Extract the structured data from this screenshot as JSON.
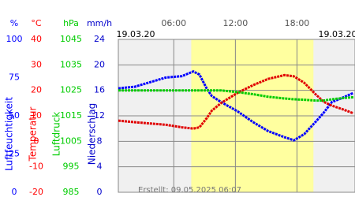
{
  "chart_data": {
    "type": "line",
    "date_left": "19.03.20",
    "date_right": "19.03.20",
    "footer": "Erstellt: 09.05.2025 06:07",
    "xlim": [
      0.6,
      23.65
    ],
    "xticks": [
      {
        "value": 6,
        "label": "06:00"
      },
      {
        "value": 12,
        "label": "12:00"
      },
      {
        "value": 18,
        "label": "18:00"
      }
    ],
    "daylight": [
      7.7,
      19.6
    ],
    "axes": [
      {
        "unit": "%",
        "title": "Luftfeuchtigkeit",
        "color": "#0000ff",
        "lim": [
          0,
          100
        ],
        "ticks": [
          0,
          25,
          50,
          75,
          100
        ]
      },
      {
        "unit": "°C",
        "title": "Temperatur",
        "color": "#ff0000",
        "lim": [
          -20,
          40
        ],
        "ticks": [
          -20,
          -10,
          0,
          10,
          20,
          30,
          40
        ]
      },
      {
        "unit": "hPa",
        "title": "Luftdruck",
        "color": "#00cc00",
        "lim": [
          985,
          1045
        ],
        "ticks": [
          985,
          995,
          1005,
          1015,
          1025,
          1035,
          1045
        ]
      },
      {
        "unit": "mm/h",
        "title": "Niederschlag",
        "color": "#0000cc",
        "lim": [
          0,
          24
        ],
        "ticks": [
          0,
          4,
          8,
          12,
          16,
          20,
          24
        ]
      }
    ],
    "x": [
      0.6,
      2.2,
      3.7,
      5.2,
      6.8,
      7.9,
      8.5,
      9.2,
      9.7,
      10.6,
      12.2,
      13.7,
      15.2,
      16.8,
      17.7,
      18.7,
      19.8,
      20.6,
      21.4,
      22.5,
      23.5
    ],
    "series": [
      {
        "axis": 0,
        "color": "#0000ff",
        "values": [
          68,
          69,
          72,
          75,
          76,
          79,
          77,
          68,
          63,
          59,
          53,
          46,
          40,
          36,
          34,
          38,
          46,
          52,
          59,
          62,
          65
        ]
      },
      {
        "axis": 1,
        "color": "#e00000",
        "values": [
          8.1,
          7.5,
          7,
          6.5,
          5.5,
          5,
          5.5,
          9,
          12,
          15,
          19,
          22,
          24.5,
          26,
          25.5,
          23,
          18.5,
          15.5,
          14,
          12.5,
          11
        ]
      },
      {
        "axis": 2,
        "color": "#00cc00",
        "values": [
          1025,
          1025,
          1025,
          1025,
          1025,
          1025,
          1025,
          1025,
          1025,
          1025,
          1024.3,
          1023.5,
          1022.5,
          1021.8,
          1021.5,
          1021.3,
          1021,
          1021,
          1021.5,
          1022,
          1022.3
        ]
      }
    ]
  }
}
